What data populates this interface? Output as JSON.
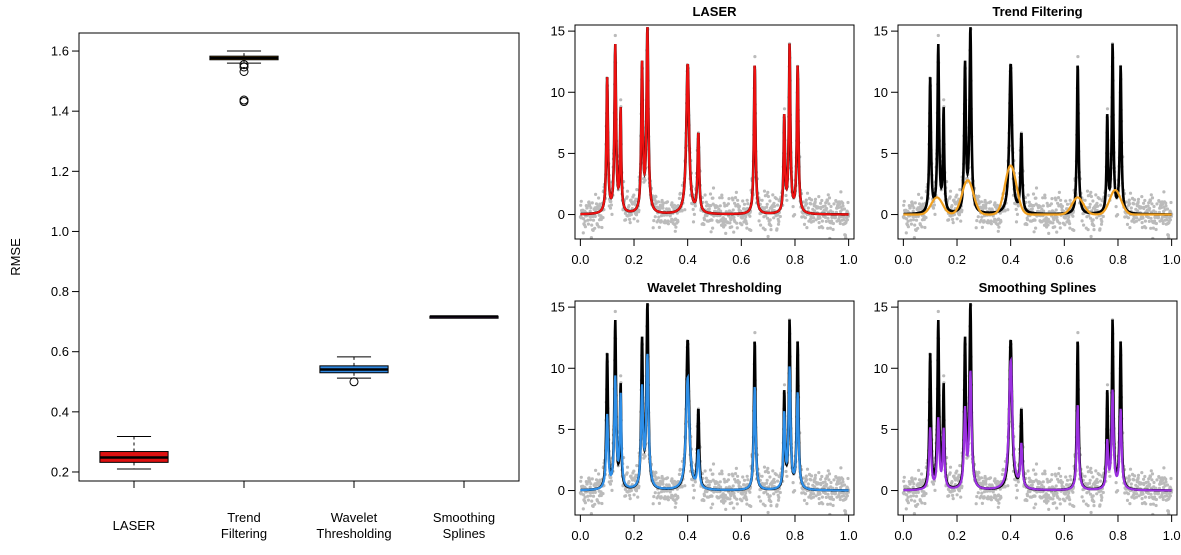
{
  "boxplot": {
    "type": "box",
    "title": "",
    "ylabel": "RMSE",
    "ylim": [
      0.17,
      1.66
    ],
    "yticks": [
      0.2,
      0.4,
      0.6,
      0.8,
      1.0,
      1.2,
      1.4,
      1.6
    ],
    "ytick_labels": [
      "0.2",
      "0.4",
      "0.6",
      "0.8",
      "1.0",
      "1.2",
      "1.4",
      "1.6"
    ],
    "boxes": [
      {
        "label_lines": [
          "LASER"
        ],
        "whisker_low": 0.21,
        "q1": 0.232,
        "median": 0.248,
        "q3": 0.268,
        "whisker_high": 0.318,
        "outliers": [],
        "color": "#dd1111"
      },
      {
        "label_lines": [
          "Trend",
          "Filtering"
        ],
        "whisker_low": 1.56,
        "q1": 1.571,
        "median": 1.577,
        "q3": 1.583,
        "whisker_high": 1.6,
        "outliers": [
          1.555,
          1.547,
          1.532,
          1.437,
          1.432
        ],
        "color": "#e6a020"
      },
      {
        "label_lines": [
          "Wavelet",
          "Thresholding"
        ],
        "whisker_low": 0.512,
        "q1": 0.53,
        "median": 0.541,
        "q3": 0.553,
        "whisker_high": 0.583,
        "outliers": [
          0.5
        ],
        "color": "#2e87e0"
      },
      {
        "label_lines": [
          "Smoothing",
          "Splines"
        ],
        "whisker_low": 0.716,
        "q1": 0.716,
        "median": 0.717,
        "q3": 0.718,
        "whisker_high": 0.718,
        "outliers": [],
        "color": "#9a30d8"
      }
    ]
  },
  "panels": [
    {
      "title": "LASER",
      "fit": "laser",
      "color": "#ee1111"
    },
    {
      "title": "Trend Filtering",
      "fit": "trend",
      "color": "#f0a020"
    },
    {
      "title": "Wavelet Thresholding",
      "fit": "wavelet",
      "color": "#2e8fe8"
    },
    {
      "title": "Smoothing Splines",
      "fit": "spline",
      "color": "#9b30e0"
    }
  ],
  "chart_data": {
    "type": "line",
    "xlim": [
      -0.02,
      1.02
    ],
    "ylim": [
      -2.0,
      15.5
    ],
    "xticks": [
      0.0,
      0.2,
      0.4,
      0.6,
      0.8,
      1.0
    ],
    "xtick_labels": [
      "0.0",
      "0.2",
      "0.4",
      "0.6",
      "0.8",
      "1.0"
    ],
    "yticks": [
      0,
      5,
      10,
      15
    ],
    "ytick_labels": [
      "0",
      "5",
      "10",
      "15"
    ],
    "true_signal_color": "#000000",
    "noise_points_color": "#bbbbbb",
    "peaks": [
      {
        "x": 0.1,
        "height": 11.0
      },
      {
        "x": 0.13,
        "height": 13.6
      },
      {
        "x": 0.15,
        "height": 8.3
      },
      {
        "x": 0.23,
        "height": 12.0
      },
      {
        "x": 0.25,
        "height": 15.0
      },
      {
        "x": 0.4,
        "height": 12.3
      },
      {
        "x": 0.44,
        "height": 6.5
      },
      {
        "x": 0.65,
        "height": 12.3
      },
      {
        "x": 0.76,
        "height": 7.8
      },
      {
        "x": 0.78,
        "height": 13.7
      },
      {
        "x": 0.81,
        "height": 12.0
      }
    ],
    "fits": {
      "laser": [
        11.0,
        13.6,
        8.3,
        12.0,
        15.0,
        12.3,
        6.5,
        12.3,
        7.8,
        13.7,
        12.0
      ],
      "wavelet": [
        6.0,
        9.0,
        7.5,
        8.0,
        10.8,
        9.2,
        3.0,
        8.5,
        6.0,
        9.8,
        7.8
      ],
      "spline": [
        5.0,
        5.7,
        4.8,
        6.3,
        9.5,
        10.6,
        3.5,
        7.0,
        3.8,
        8.0,
        6.5
      ],
      "trend": [
        {
          "x": 0.125,
          "height": 1.4
        },
        {
          "x": 0.24,
          "height": 2.8
        },
        {
          "x": 0.4,
          "height": 4.0
        },
        {
          "x": 0.65,
          "height": 1.4
        },
        {
          "x": 0.79,
          "height": 2.0
        }
      ]
    }
  }
}
